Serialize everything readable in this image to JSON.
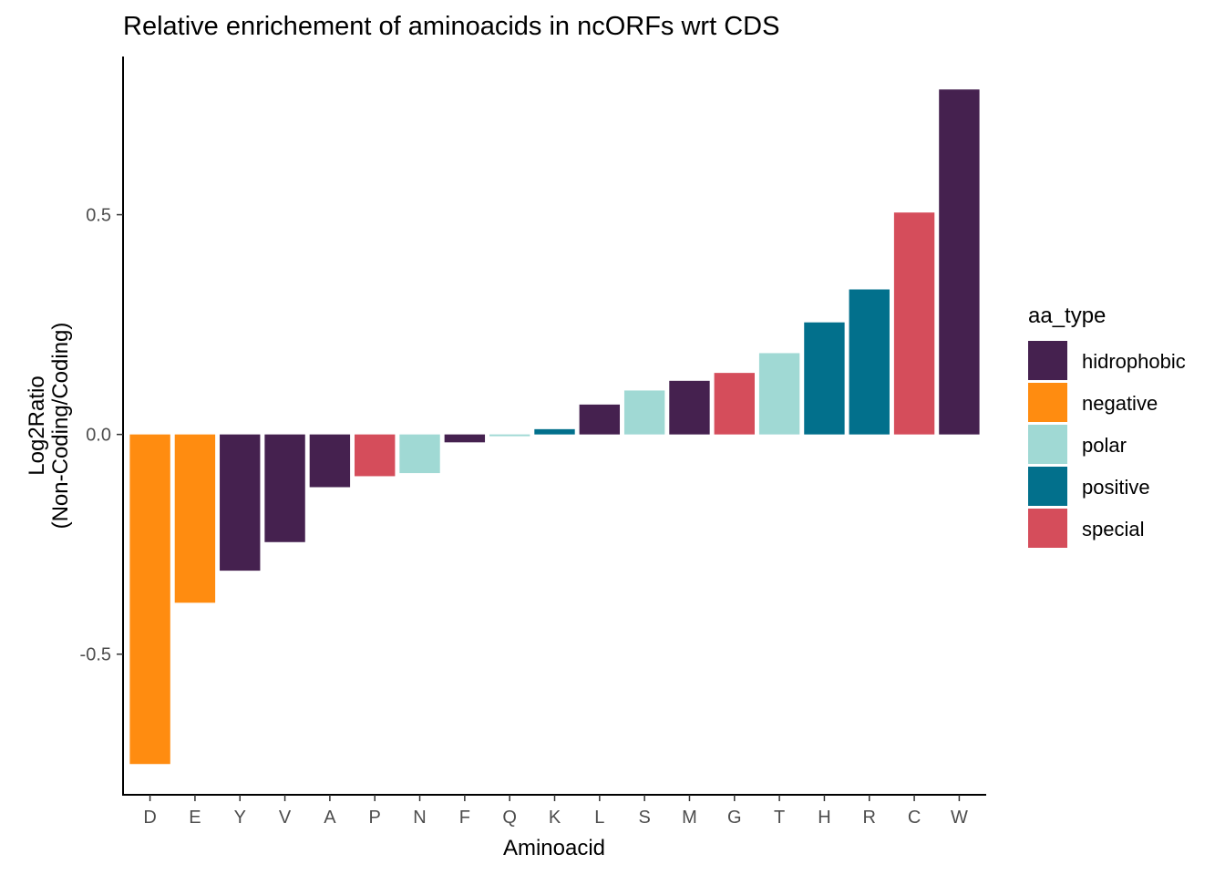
{
  "chart_data": {
    "type": "bar",
    "title": "Relative enrichement of aminoacids in ncORFs wrt CDS",
    "xlabel": "Aminoacid",
    "ylabel_lines": [
      "Log2Ratio",
      "(Non-Coding/Coding)"
    ],
    "ylim": [
      -0.82,
      0.86
    ],
    "yticks": [
      -0.5,
      0.0,
      0.5
    ],
    "ytick_labels": [
      "-0.5",
      "0.0",
      "0.5"
    ],
    "grid": false,
    "legend_position": "right",
    "categories": [
      "D",
      "E",
      "Y",
      "V",
      "A",
      "P",
      "N",
      "F",
      "Q",
      "K",
      "L",
      "S",
      "M",
      "G",
      "T",
      "H",
      "R",
      "C",
      "W"
    ],
    "values": [
      -0.75,
      -0.383,
      -0.31,
      -0.245,
      -0.12,
      -0.095,
      -0.088,
      -0.018,
      -0.004,
      0.012,
      0.068,
      0.1,
      0.122,
      0.14,
      0.185,
      0.255,
      0.33,
      0.505,
      0.785
    ],
    "types": [
      "negative",
      "negative",
      "hidrophobic",
      "hidrophobic",
      "hidrophobic",
      "special",
      "polar",
      "hidrophobic",
      "polar",
      "positive",
      "hidrophobic",
      "polar",
      "hidrophobic",
      "special",
      "polar",
      "positive",
      "positive",
      "special",
      "hidrophobic"
    ],
    "legend": {
      "title": "aa_type",
      "entries": [
        {
          "name": "hidrophobic",
          "color": "#45214f"
        },
        {
          "name": "negative",
          "color": "#ff8c10"
        },
        {
          "name": "polar",
          "color": "#a0d9d4"
        },
        {
          "name": "positive",
          "color": "#02708c"
        },
        {
          "name": "special",
          "color": "#d54d5b"
        }
      ]
    }
  }
}
